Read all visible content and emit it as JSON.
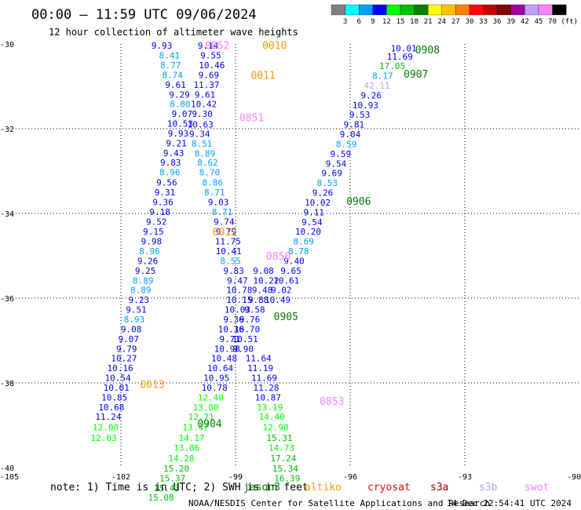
{
  "header": {
    "title": "00:00 — 11:59 UTC 09/06/2024",
    "subtitle": "12 hour collection of altimeter wave heights"
  },
  "colorbar": {
    "unit": "(ft)",
    "bins": [
      {
        "label": "3",
        "color": "#808080"
      },
      {
        "label": "6",
        "color": "#00ffff"
      },
      {
        "label": "9",
        "color": "#00a0ff"
      },
      {
        "label": "12",
        "color": "#0000ff"
      },
      {
        "label": "15",
        "color": "#00ff00"
      },
      {
        "label": "18",
        "color": "#00c000"
      },
      {
        "label": "21",
        "color": "#008000"
      },
      {
        "label": "24",
        "color": "#ffff00"
      },
      {
        "label": "27",
        "color": "#ffc000"
      },
      {
        "label": "30",
        "color": "#ff8000"
      },
      {
        "label": "33",
        "color": "#ff0000"
      },
      {
        "label": "36",
        "color": "#c00000"
      },
      {
        "label": "39",
        "color": "#800000"
      },
      {
        "label": "42",
        "color": "#a000a0"
      },
      {
        "label": "45",
        "color": "#c0a0ff"
      },
      {
        "label": "70",
        "color": "#ff80ff"
      },
      {
        "label": "",
        "color": "#000000"
      }
    ]
  },
  "footer": {
    "note": "note:  1) Time is in UTC; 2) SWH is in feet",
    "credit": "NOAA/NESDIS Center for Satellite Applications and Research",
    "timestamp": "14 Dec 22:54:41 UTC 2024",
    "missions": [
      {
        "name": "jason3",
        "color": "#008000"
      },
      {
        "name": "altiko",
        "color": "#ff9900"
      },
      {
        "name": "cryosat",
        "color": "#ff0000"
      },
      {
        "name": "s3a",
        "color": "#a00000"
      },
      {
        "name": "s3b",
        "color": "#c0a0ff"
      },
      {
        "name": "swot",
        "color": "#ff80ff"
      }
    ]
  },
  "chart_data": {
    "type": "scatter",
    "title": "00:00 — 11:59 UTC 09/06/2024",
    "subtitle": "12 hour collection of altimeter wave heights",
    "xlim": [
      -105,
      -90
    ],
    "ylim": [
      -40,
      -30
    ],
    "x_ticks": [
      -105,
      -102,
      -99,
      -96,
      -93,
      -90
    ],
    "y_ticks": [
      -30,
      -32,
      -34,
      -36,
      -38,
      -40
    ],
    "x_tick_labels": [
      "-105",
      "-102",
      "-99",
      "-96",
      "-93",
      "-90"
    ],
    "y_tick_labels": [
      "-30",
      "-32",
      "-34",
      "-36",
      "-38",
      "-40"
    ],
    "grid": true,
    "value_unit": "ft",
    "pass_labels": [
      {
        "text": "0010",
        "lon": -98.3,
        "lat": -30.03,
        "color": "#ff9900"
      },
      {
        "text": "0011",
        "lon": -98.6,
        "lat": -30.73,
        "color": "#ff9900"
      },
      {
        "text": "0851",
        "lon": -98.9,
        "lat": -31.73,
        "color": "#ff80ff"
      },
      {
        "text": "0012",
        "lon": -99.6,
        "lat": -34.43,
        "color": "#ff9900"
      },
      {
        "text": "0850",
        "lon": -98.2,
        "lat": -35.0,
        "color": "#ff80ff"
      },
      {
        "text": "0013",
        "lon": -101.5,
        "lat": -38.03,
        "color": "#ff9900"
      },
      {
        "text": "0904",
        "lon": -100.0,
        "lat": -38.95,
        "color": "#008000"
      },
      {
        "text": "0853",
        "lon": -96.8,
        "lat": -38.43,
        "color": "#ff80ff"
      },
      {
        "text": "0905",
        "lon": -98.0,
        "lat": -36.43,
        "color": "#008000"
      },
      {
        "text": "0906",
        "lon": -96.1,
        "lat": -33.7,
        "color": "#008000"
      },
      {
        "text": "0907",
        "lon": -94.6,
        "lat": -30.7,
        "color": "#008000"
      },
      {
        "text": "0908",
        "lon": -94.3,
        "lat": -30.13,
        "color": "#008000"
      },
      {
        "text": "0852",
        "lon": -99.8,
        "lat": -30.03,
        "color": "#ff80ff"
      }
    ],
    "points": [
      {
        "lon": -100.93,
        "lat": -30.04,
        "v": "9.93"
      },
      {
        "lon": -100.73,
        "lat": -30.27,
        "v": "8.41"
      },
      {
        "lon": -100.7,
        "lat": -30.5,
        "v": "8.77"
      },
      {
        "lon": -100.65,
        "lat": -30.73,
        "v": "8.74"
      },
      {
        "lon": -100.57,
        "lat": -30.96,
        "v": "9.61"
      },
      {
        "lon": -100.47,
        "lat": -31.19,
        "v": "9.29"
      },
      {
        "lon": -100.45,
        "lat": -31.42,
        "v": "8.80"
      },
      {
        "lon": -100.4,
        "lat": -31.65,
        "v": "9.07"
      },
      {
        "lon": -100.45,
        "lat": -31.88,
        "v": "10.53"
      },
      {
        "lon": -100.5,
        "lat": -32.11,
        "v": "9.93"
      },
      {
        "lon": -100.55,
        "lat": -32.34,
        "v": "9.21"
      },
      {
        "lon": -100.62,
        "lat": -32.57,
        "v": "9.43"
      },
      {
        "lon": -100.7,
        "lat": -32.8,
        "v": "9.83"
      },
      {
        "lon": -100.72,
        "lat": -33.03,
        "v": "8.96"
      },
      {
        "lon": -100.8,
        "lat": -33.27,
        "v": "9.56"
      },
      {
        "lon": -100.85,
        "lat": -33.5,
        "v": "9.31"
      },
      {
        "lon": -100.9,
        "lat": -33.73,
        "v": "9.36"
      },
      {
        "lon": -100.98,
        "lat": -33.96,
        "v": "9.18"
      },
      {
        "lon": -101.07,
        "lat": -34.19,
        "v": "9.52"
      },
      {
        "lon": -101.15,
        "lat": -34.43,
        "v": "9.15"
      },
      {
        "lon": -101.2,
        "lat": -34.66,
        "v": "9.98"
      },
      {
        "lon": -101.25,
        "lat": -34.89,
        "v": "8.96"
      },
      {
        "lon": -101.3,
        "lat": -35.12,
        "v": "9.26"
      },
      {
        "lon": -101.36,
        "lat": -35.35,
        "v": "9.25"
      },
      {
        "lon": -101.42,
        "lat": -35.58,
        "v": "8.89"
      },
      {
        "lon": -101.48,
        "lat": -35.81,
        "v": "8.89"
      },
      {
        "lon": -101.53,
        "lat": -36.04,
        "v": "9.23"
      },
      {
        "lon": -101.6,
        "lat": -36.27,
        "v": "9.51"
      },
      {
        "lon": -101.65,
        "lat": -36.5,
        "v": "8.93"
      },
      {
        "lon": -101.73,
        "lat": -36.73,
        "v": "9.08"
      },
      {
        "lon": -101.8,
        "lat": -36.96,
        "v": "9.07"
      },
      {
        "lon": -101.85,
        "lat": -37.19,
        "v": "9.79"
      },
      {
        "lon": -101.92,
        "lat": -37.42,
        "v": "10.27"
      },
      {
        "lon": -102.02,
        "lat": -37.65,
        "v": "10.16"
      },
      {
        "lon": -102.08,
        "lat": -37.88,
        "v": "10.54"
      },
      {
        "lon": -102.12,
        "lat": -38.11,
        "v": "10.01"
      },
      {
        "lon": -102.17,
        "lat": -38.34,
        "v": "10.85"
      },
      {
        "lon": -102.25,
        "lat": -38.57,
        "v": "10.68"
      },
      {
        "lon": -102.33,
        "lat": -38.8,
        "v": "11.24"
      },
      {
        "lon": -102.4,
        "lat": -39.05,
        "v": "12.00"
      },
      {
        "lon": -102.45,
        "lat": -39.3,
        "v": "12.03"
      },
      {
        "lon": -99.72,
        "lat": -30.04,
        "v": "9.14"
      },
      {
        "lon": -99.65,
        "lat": -30.27,
        "v": "9.55"
      },
      {
        "lon": -99.62,
        "lat": -30.5,
        "v": "10.46"
      },
      {
        "lon": -99.7,
        "lat": -30.73,
        "v": "9.69"
      },
      {
        "lon": -99.76,
        "lat": -30.96,
        "v": "11.37"
      },
      {
        "lon": -99.8,
        "lat": -31.19,
        "v": "9.61"
      },
      {
        "lon": -99.83,
        "lat": -31.42,
        "v": "10.42"
      },
      {
        "lon": -99.87,
        "lat": -31.65,
        "v": "9.30"
      },
      {
        "lon": -99.92,
        "lat": -31.9,
        "v": "10.63"
      },
      {
        "lon": -99.94,
        "lat": -32.12,
        "v": "9.34"
      },
      {
        "lon": -99.88,
        "lat": -32.35,
        "v": "8.51"
      },
      {
        "lon": -99.8,
        "lat": -32.58,
        "v": "8.89"
      },
      {
        "lon": -99.73,
        "lat": -32.8,
        "v": "8.62"
      },
      {
        "lon": -99.68,
        "lat": -33.03,
        "v": "8.70"
      },
      {
        "lon": -99.6,
        "lat": -33.27,
        "v": "8.86"
      },
      {
        "lon": -99.55,
        "lat": -33.5,
        "v": "8.71"
      },
      {
        "lon": -99.45,
        "lat": -33.73,
        "v": "9.03"
      },
      {
        "lon": -99.35,
        "lat": -33.96,
        "v": "8.71"
      },
      {
        "lon": -99.3,
        "lat": -34.19,
        "v": "9.74"
      },
      {
        "lon": -99.25,
        "lat": -34.43,
        "v": "9.79"
      },
      {
        "lon": -99.2,
        "lat": -34.66,
        "v": "11.75"
      },
      {
        "lon": -99.18,
        "lat": -34.89,
        "v": "10.41"
      },
      {
        "lon": -99.13,
        "lat": -35.12,
        "v": "8.55"
      },
      {
        "lon": -99.05,
        "lat": -35.35,
        "v": "9.83"
      },
      {
        "lon": -98.95,
        "lat": -35.58,
        "v": "9.47"
      },
      {
        "lon": -98.9,
        "lat": -35.81,
        "v": "10.78"
      },
      {
        "lon": -98.9,
        "lat": -36.04,
        "v": "10.15"
      },
      {
        "lon": -98.95,
        "lat": -36.27,
        "v": "10.03"
      },
      {
        "lon": -99.05,
        "lat": -36.5,
        "v": "9.36"
      },
      {
        "lon": -99.12,
        "lat": -36.73,
        "v": "10.36"
      },
      {
        "lon": -99.15,
        "lat": -36.96,
        "v": "9.71"
      },
      {
        "lon": -99.22,
        "lat": -37.19,
        "v": "10.98"
      },
      {
        "lon": -99.3,
        "lat": -37.42,
        "v": "10.48"
      },
      {
        "lon": -99.4,
        "lat": -37.65,
        "v": "10.64"
      },
      {
        "lon": -99.5,
        "lat": -37.88,
        "v": "10.95"
      },
      {
        "lon": -99.55,
        "lat": -38.11,
        "v": "10.78"
      },
      {
        "lon": -99.65,
        "lat": -38.34,
        "v": "12.40"
      },
      {
        "lon": -99.78,
        "lat": -38.57,
        "v": "13.00"
      },
      {
        "lon": -99.9,
        "lat": -38.8,
        "v": "12.71"
      },
      {
        "lon": -100.05,
        "lat": -39.05,
        "v": "13.47"
      },
      {
        "lon": -100.15,
        "lat": -39.3,
        "v": "14.17"
      },
      {
        "lon": -100.28,
        "lat": -39.53,
        "v": "13.86"
      },
      {
        "lon": -100.42,
        "lat": -39.78,
        "v": "14.28"
      },
      {
        "lon": -100.55,
        "lat": -40.02,
        "v": "15.20"
      },
      {
        "lon": -100.65,
        "lat": -40.25,
        "v": "15.37"
      },
      {
        "lon": -100.8,
        "lat": -40.48,
        "v": "15.43"
      },
      {
        "lon": -100.95,
        "lat": -40.7,
        "v": "15.08"
      },
      {
        "lon": -98.27,
        "lat": -35.35,
        "v": "9.08"
      },
      {
        "lon": -98.2,
        "lat": -35.58,
        "v": "10.22"
      },
      {
        "lon": -98.3,
        "lat": -35.81,
        "v": "9.48"
      },
      {
        "lon": -98.4,
        "lat": -36.04,
        "v": "9.88"
      },
      {
        "lon": -98.5,
        "lat": -36.27,
        "v": "9.58"
      },
      {
        "lon": -98.63,
        "lat": -36.5,
        "v": "9.76"
      },
      {
        "lon": -98.7,
        "lat": -36.73,
        "v": "10.70"
      },
      {
        "lon": -98.75,
        "lat": -36.96,
        "v": "10.51"
      },
      {
        "lon": -98.8,
        "lat": -37.19,
        "v": "9.90"
      },
      {
        "lon": -98.4,
        "lat": -37.42,
        "v": "11.64"
      },
      {
        "lon": -98.35,
        "lat": -37.65,
        "v": "11.19"
      },
      {
        "lon": -98.25,
        "lat": -37.88,
        "v": "11.69"
      },
      {
        "lon": -98.2,
        "lat": -38.11,
        "v": "11.28"
      },
      {
        "lon": -98.15,
        "lat": -38.34,
        "v": "10.87"
      },
      {
        "lon": -98.1,
        "lat": -38.57,
        "v": "13.19"
      },
      {
        "lon": -98.05,
        "lat": -38.8,
        "v": "14.40"
      },
      {
        "lon": -97.95,
        "lat": -39.05,
        "v": "12.90"
      },
      {
        "lon": -97.85,
        "lat": -39.3,
        "v": "15.31"
      },
      {
        "lon": -97.8,
        "lat": -39.53,
        "v": "14.73"
      },
      {
        "lon": -97.75,
        "lat": -39.78,
        "v": "17.24"
      },
      {
        "lon": -97.7,
        "lat": -40.02,
        "v": "15.34"
      },
      {
        "lon": -97.65,
        "lat": -40.25,
        "v": "16.39"
      },
      {
        "lon": -94.6,
        "lat": -30.1,
        "v": "10.01"
      },
      {
        "lon": -94.7,
        "lat": -30.3,
        "v": "11.69"
      },
      {
        "lon": -94.9,
        "lat": -30.52,
        "v": "17.05"
      },
      {
        "lon": -95.15,
        "lat": -30.75,
        "v": "8.17"
      },
      {
        "lon": -95.3,
        "lat": -30.98,
        "v": "42.11"
      },
      {
        "lon": -95.45,
        "lat": -31.21,
        "v": "9.26"
      },
      {
        "lon": -95.6,
        "lat": -31.44,
        "v": "10.93"
      },
      {
        "lon": -95.75,
        "lat": -31.67,
        "v": "9.53"
      },
      {
        "lon": -95.9,
        "lat": -31.9,
        "v": "9.81"
      },
      {
        "lon": -96.0,
        "lat": -32.13,
        "v": "9.04"
      },
      {
        "lon": -96.1,
        "lat": -32.36,
        "v": "8.59"
      },
      {
        "lon": -96.25,
        "lat": -32.59,
        "v": "9.59"
      },
      {
        "lon": -96.37,
        "lat": -32.82,
        "v": "9.54"
      },
      {
        "lon": -96.48,
        "lat": -33.05,
        "v": "9.69"
      },
      {
        "lon": -96.6,
        "lat": -33.28,
        "v": "8.53"
      },
      {
        "lon": -96.72,
        "lat": -33.51,
        "v": "9.26"
      },
      {
        "lon": -96.85,
        "lat": -33.74,
        "v": "10.02"
      },
      {
        "lon": -96.95,
        "lat": -33.97,
        "v": "9.11"
      },
      {
        "lon": -97.0,
        "lat": -34.2,
        "v": "9.54"
      },
      {
        "lon": -97.1,
        "lat": -34.43,
        "v": "10.20"
      },
      {
        "lon": -97.22,
        "lat": -34.66,
        "v": "8.69"
      },
      {
        "lon": -97.35,
        "lat": -34.89,
        "v": "8.78"
      },
      {
        "lon": -97.47,
        "lat": -35.12,
        "v": "9.40"
      },
      {
        "lon": -97.55,
        "lat": -35.35,
        "v": "9.65"
      },
      {
        "lon": -97.67,
        "lat": -35.58,
        "v": "10.61"
      },
      {
        "lon": -97.8,
        "lat": -35.81,
        "v": "9.02"
      },
      {
        "lon": -97.9,
        "lat": -36.04,
        "v": "10.49"
      }
    ]
  }
}
